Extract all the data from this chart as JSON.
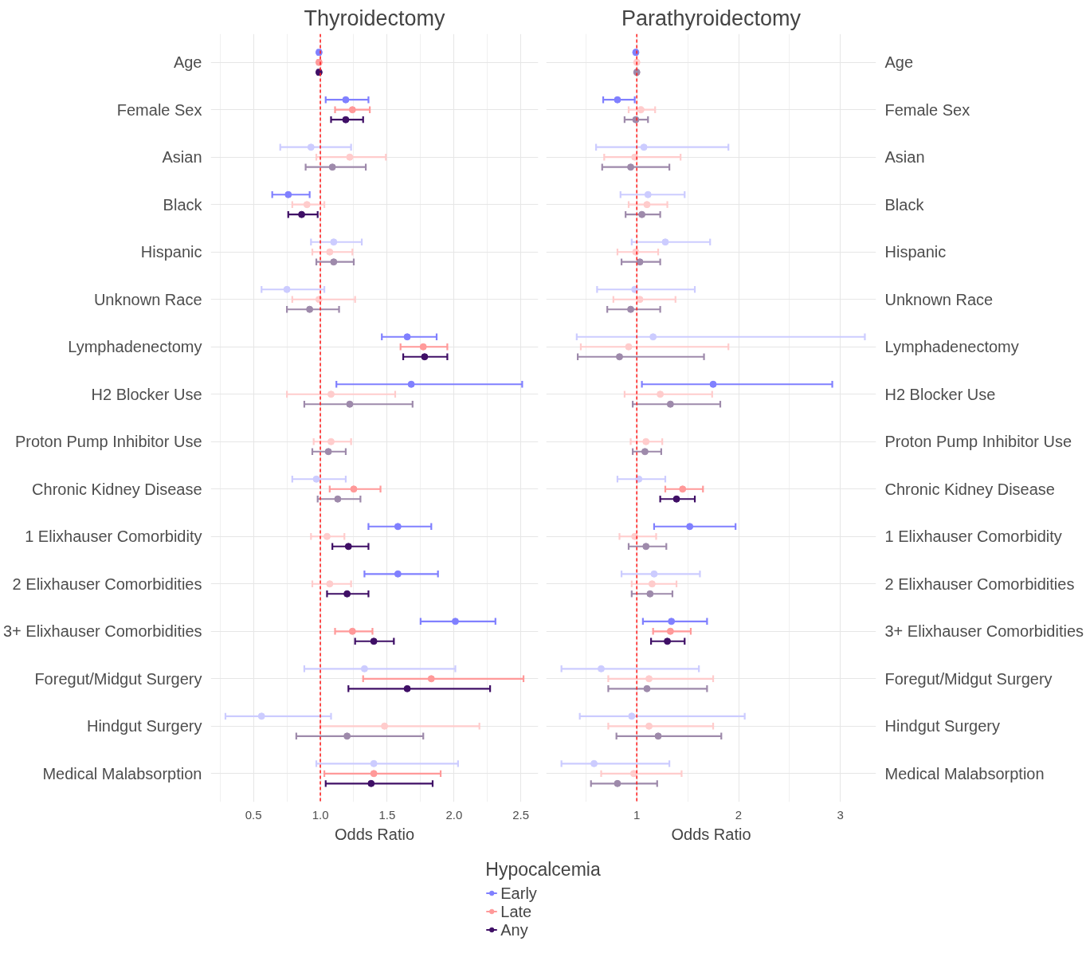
{
  "chart_data": [
    {
      "type": "scatter",
      "orientation": "horizontal",
      "title": "Thyroidectomy",
      "xlabel": "Odds Ratio",
      "legend_title": "Hypocalcemia",
      "legend": "bottom",
      "grid": true,
      "marker": "circle",
      "categories": [
        "Age",
        "Female Sex",
        "Asian",
        "Black",
        "Hispanic",
        "Unknown Race",
        "Lymphadenectomy",
        "H2 Blocker Use",
        "Proton Pump Inhibitor Use",
        "Chronic Kidney Disease",
        "1 Elixhauser Comorbidity",
        "2 Elixhauser Comorbidities",
        "3+ Elixhauser Comorbidities",
        "Foregut/Midgut Surgery",
        "Hindgut Surgery",
        "Medical Malabsorption"
      ],
      "xlim": [
        0.18,
        2.63
      ],
      "xticks": [
        0.5,
        {
          "value": 1,
          "label": "1.0"
        },
        1.5,
        {
          "value": 2,
          "label": "2.0"
        },
        2.5
      ],
      "ref_lines": [
        {
          "axis": "x",
          "value": 1,
          "color": "#ff2020",
          "line_style": "dashed"
        }
      ],
      "series": [
        {
          "name": "Early",
          "color": "#8080ff",
          "values": [
            0.99,
            1.19,
            0.93,
            0.76,
            1.1,
            0.75,
            1.65,
            1.68,
            null,
            0.97,
            1.58,
            1.58,
            2.01,
            1.33,
            0.56,
            1.4
          ],
          "errors": [
            [
              0.98,
              1.0
            ],
            [
              1.04,
              1.36
            ],
            [
              0.7,
              1.23
            ],
            [
              0.64,
              0.92
            ],
            [
              0.93,
              1.31
            ],
            [
              0.56,
              1.03
            ],
            [
              1.46,
              1.87
            ],
            [
              1.12,
              2.51
            ],
            null,
            [
              0.79,
              1.19
            ],
            [
              1.36,
              1.83
            ],
            [
              1.33,
              1.88
            ],
            [
              1.75,
              2.31
            ],
            [
              0.88,
              2.01
            ],
            [
              0.29,
              1.08
            ],
            [
              0.97,
              2.03
            ]
          ],
          "colors": [
            "#8080ff",
            "#8080ff",
            "#ccccff",
            "#8080ff",
            "#ccccff",
            "#ccccff",
            "#8080ff",
            "#8080ff",
            null,
            "#ccccff",
            "#8080ff",
            "#8080ff",
            "#8080ff",
            "#ccccff",
            "#ccccff",
            "#ccccff"
          ]
        },
        {
          "name": "Late",
          "color": "#ff9999",
          "values": [
            0.99,
            1.24,
            1.22,
            0.9,
            1.07,
            0.99,
            1.77,
            1.08,
            1.08,
            1.25,
            1.05,
            1.07,
            1.24,
            1.83,
            1.48,
            1.4
          ],
          "errors": [
            [
              0.98,
              1.0
            ],
            [
              1.11,
              1.37
            ],
            [
              0.97,
              1.49
            ],
            [
              0.79,
              1.03
            ],
            [
              0.94,
              1.24
            ],
            [
              0.79,
              1.26
            ],
            [
              1.6,
              1.95
            ],
            [
              0.75,
              1.56
            ],
            [
              0.95,
              1.23
            ],
            [
              1.07,
              1.45
            ],
            [
              0.93,
              1.18
            ],
            [
              0.94,
              1.23
            ],
            [
              1.11,
              1.39
            ],
            [
              1.32,
              2.52
            ],
            [
              1.0,
              2.19
            ],
            [
              1.03,
              1.9
            ]
          ],
          "colors": [
            "#ff9999",
            "#ff9999",
            "#ffcccc",
            "#ffcccc",
            "#ffcccc",
            "#ffcccc",
            "#ff9999",
            "#ffcccc",
            "#ffcccc",
            "#ff9999",
            "#ffcccc",
            "#ffcccc",
            "#ff9999",
            "#ff9999",
            "#ffcccc",
            "#ff9999"
          ]
        },
        {
          "name": "Any",
          "color": "#3f0f66",
          "values": [
            0.99,
            1.19,
            1.09,
            0.86,
            1.1,
            0.92,
            1.78,
            1.22,
            1.06,
            1.13,
            1.21,
            1.2,
            1.4,
            1.65,
            1.2,
            1.38
          ],
          "errors": [
            [
              0.98,
              1.0
            ],
            [
              1.08,
              1.32
            ],
            [
              0.89,
              1.34
            ],
            [
              0.76,
              0.98
            ],
            [
              0.97,
              1.25
            ],
            [
              0.75,
              1.14
            ],
            [
              1.62,
              1.95
            ],
            [
              0.88,
              1.69
            ],
            [
              0.94,
              1.19
            ],
            [
              0.98,
              1.3
            ],
            [
              1.09,
              1.36
            ],
            [
              1.05,
              1.36
            ],
            [
              1.26,
              1.55
            ],
            [
              1.21,
              2.27
            ],
            [
              0.82,
              1.77
            ],
            [
              1.04,
              1.84
            ]
          ],
          "colors": [
            "#3f0f66",
            "#3f0f66",
            "#9e8aab",
            "#3f0f66",
            "#9e8aab",
            "#9e8aab",
            "#3f0f66",
            "#9e8aab",
            "#9e8aab",
            "#9e8aab",
            "#3f0f66",
            "#3f0f66",
            "#3f0f66",
            "#3f0f66",
            "#9e8aab",
            "#3f0f66"
          ]
        }
      ]
    },
    {
      "type": "scatter",
      "orientation": "horizontal",
      "title": "Parathyroidectomy",
      "xlabel": "Odds Ratio",
      "grid": true,
      "marker": "circle",
      "categories": [
        "Age",
        "Female Sex",
        "Asian",
        "Black",
        "Hispanic",
        "Unknown Race",
        "Lymphadenectomy",
        "H2 Blocker Use",
        "Proton Pump Inhibitor Use",
        "Chronic Kidney Disease",
        "1 Elixhauser Comorbidity",
        "2 Elixhauser Comorbidities",
        "3+ Elixhauser Comorbidities",
        "Foregut/Midgut Surgery",
        "Hindgut Surgery",
        "Medical Malabsorption"
      ],
      "xlim": [
        0.11,
        3.35
      ],
      "xticks": [
        1,
        2,
        3
      ],
      "ref_lines": [
        {
          "axis": "x",
          "value": 1,
          "color": "#ff2020",
          "line_style": "dashed"
        }
      ],
      "series": [
        {
          "color": "#8080ff",
          "values": [
            0.99,
            0.81,
            1.07,
            1.11,
            1.28,
            0.98,
            1.16,
            1.75,
            null,
            1.02,
            1.52,
            1.17,
            1.34,
            0.65,
            0.95,
            0.58
          ],
          "errors": [
            [
              0.98,
              1.0
            ],
            [
              0.67,
              0.98
            ],
            [
              0.6,
              1.9
            ],
            [
              0.84,
              1.47
            ],
            [
              0.95,
              1.72
            ],
            [
              0.61,
              1.57
            ],
            [
              0.41,
              3.24
            ],
            [
              1.05,
              2.92
            ],
            null,
            [
              0.81,
              1.28
            ],
            [
              1.17,
              1.97
            ],
            [
              0.85,
              1.62
            ],
            [
              1.06,
              1.69
            ],
            [
              0.26,
              1.61
            ],
            [
              0.44,
              2.06
            ],
            [
              0.26,
              1.32
            ]
          ],
          "colors": [
            "#8080ff",
            "#8080ff",
            "#ccccff",
            "#ccccff",
            "#ccccff",
            "#ccccff",
            "#ccccff",
            "#8080ff",
            null,
            "#ccccff",
            "#8080ff",
            "#ccccff",
            "#8080ff",
            "#ccccff",
            "#ccccff",
            "#ccccff"
          ]
        },
        {
          "color": "#ff9999",
          "values": [
            1.0,
            1.04,
            0.98,
            1.1,
            0.99,
            1.03,
            0.92,
            1.23,
            1.09,
            1.45,
            0.98,
            1.15,
            1.33,
            1.12,
            1.12,
            0.97
          ],
          "errors": [
            [
              0.99,
              1.01
            ],
            [
              0.92,
              1.18
            ],
            [
              0.68,
              1.43
            ],
            [
              0.92,
              1.3
            ],
            [
              0.81,
              1.21
            ],
            [
              0.77,
              1.38
            ],
            [
              0.45,
              1.9
            ],
            [
              0.88,
              1.74
            ],
            [
              0.94,
              1.25
            ],
            [
              1.28,
              1.65
            ],
            [
              0.83,
              1.19
            ],
            [
              0.95,
              1.39
            ],
            [
              1.16,
              1.53
            ],
            [
              0.72,
              1.75
            ],
            [
              0.72,
              1.75
            ],
            [
              0.65,
              1.44
            ]
          ],
          "colors": [
            "#ffcccc",
            "#ffcccc",
            "#ffcccc",
            "#ffcccc",
            "#ffcccc",
            "#ffcccc",
            "#ffcccc",
            "#ffcccc",
            "#ffcccc",
            "#ff9999",
            "#ffcccc",
            "#ffcccc",
            "#ff9999",
            "#ffcccc",
            "#ffcccc",
            "#ffcccc"
          ]
        },
        {
          "color": "#3f0f66",
          "values": [
            1.0,
            0.99,
            0.94,
            1.05,
            1.03,
            0.94,
            0.83,
            1.33,
            1.08,
            1.39,
            1.09,
            1.13,
            1.3,
            1.1,
            1.21,
            0.81
          ],
          "errors": [
            [
              0.99,
              1.01
            ],
            [
              0.88,
              1.11
            ],
            [
              0.66,
              1.32
            ],
            [
              0.89,
              1.23
            ],
            [
              0.85,
              1.23
            ],
            [
              0.71,
              1.23
            ],
            [
              0.42,
              1.66
            ],
            [
              0.96,
              1.82
            ],
            [
              0.96,
              1.24
            ],
            [
              1.23,
              1.57
            ],
            [
              0.92,
              1.29
            ],
            [
              0.95,
              1.35
            ],
            [
              1.14,
              1.47
            ],
            [
              0.72,
              1.69
            ],
            [
              0.8,
              1.83
            ],
            [
              0.55,
              1.2
            ]
          ],
          "colors": [
            "#9e8aab",
            "#9e8aab",
            "#9e8aab",
            "#9e8aab",
            "#9e8aab",
            "#9e8aab",
            "#9e8aab",
            "#9e8aab",
            "#9e8aab",
            "#3f0f66",
            "#9e8aab",
            "#9e8aab",
            "#3f0f66",
            "#9e8aab",
            "#9e8aab",
            "#9e8aab"
          ]
        }
      ]
    }
  ]
}
